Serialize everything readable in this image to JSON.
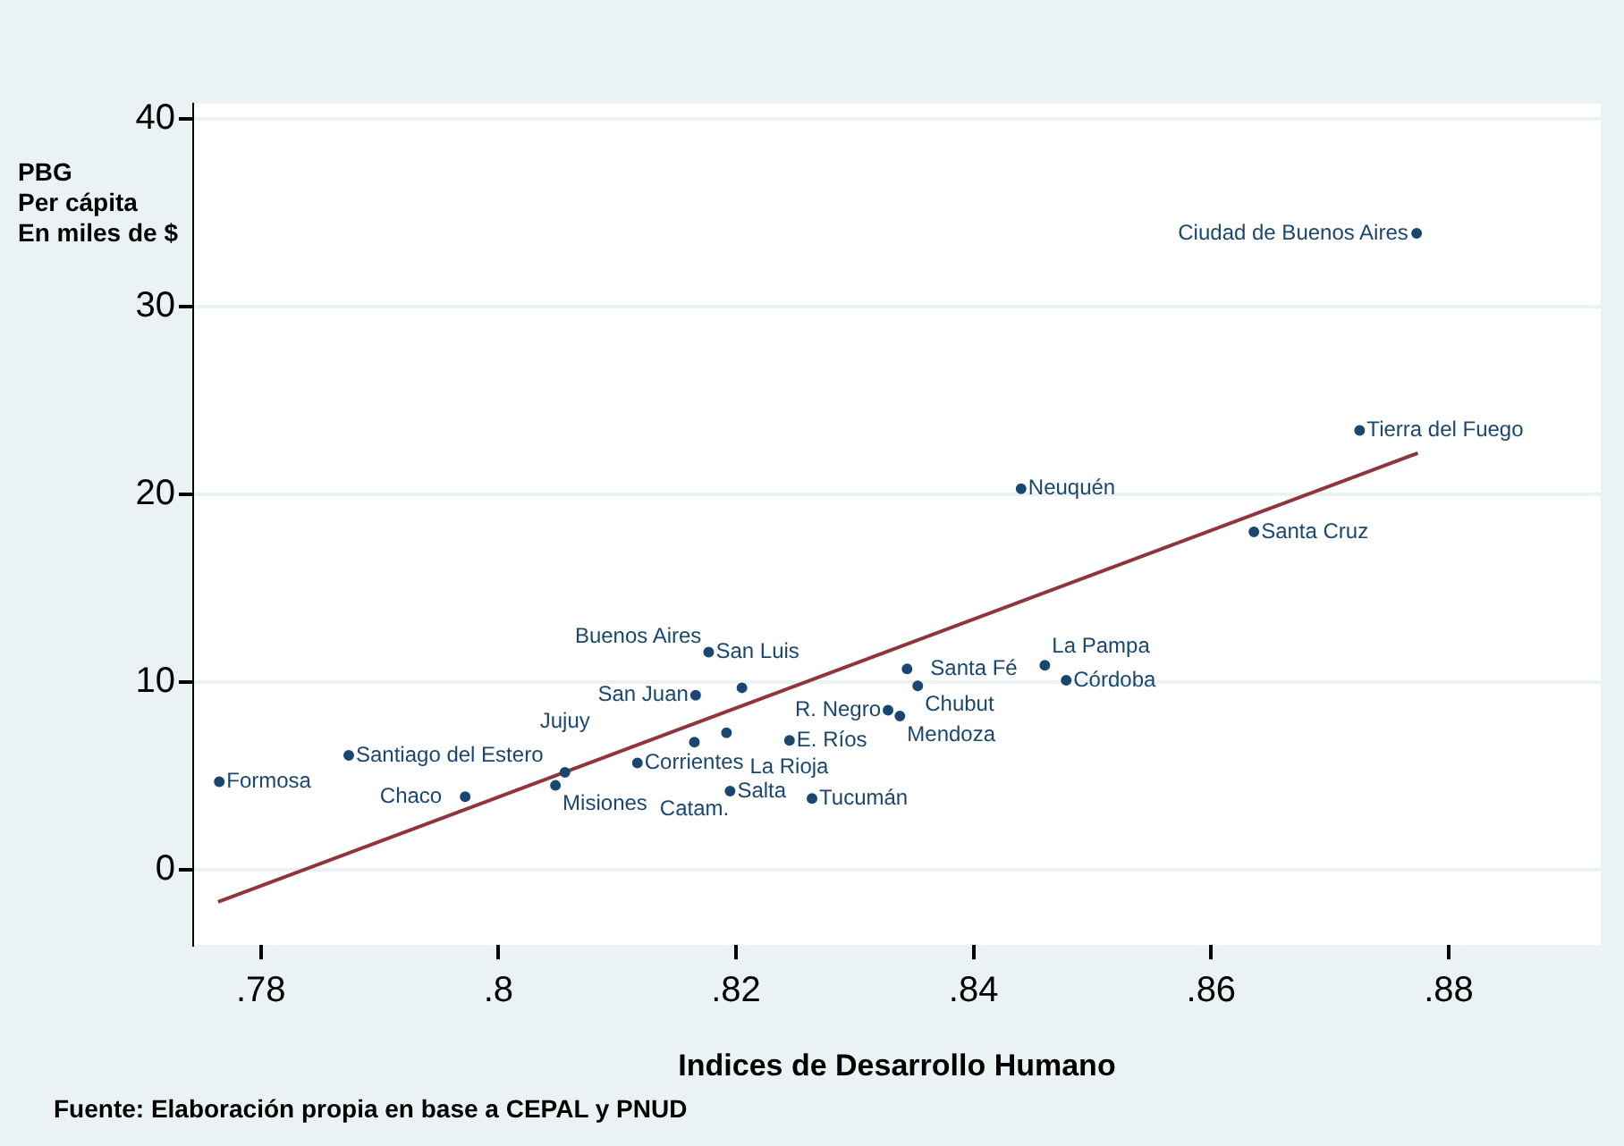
{
  "chart_data": {
    "type": "scatter",
    "xlabel": "Indices de Desarrollo Humano",
    "ylabel": "PBG\nPer cápita\nEn miles de $",
    "xlim": [
      0.7743,
      0.8928
    ],
    "ylim": [
      -4,
      40.8
    ],
    "xticks": [
      {
        "value": 0.78,
        "label": ".78"
      },
      {
        "value": 0.8,
        "label": ".8"
      },
      {
        "value": 0.82,
        "label": ".82"
      },
      {
        "value": 0.84,
        "label": ".84"
      },
      {
        "value": 0.86,
        "label": ".86"
      },
      {
        "value": 0.88,
        "label": ".88"
      }
    ],
    "yticks": [
      0,
      10,
      20,
      30,
      40
    ],
    "grid": "y",
    "legend": false,
    "marker": "circle",
    "series": [
      {
        "type": "scatter",
        "color": "#1a476f",
        "x": [
          0.7765,
          0.7874,
          0.7972,
          0.8048,
          0.8056,
          0.8117,
          0.8177,
          0.8205,
          0.8166,
          0.8192,
          0.8165,
          0.8245,
          0.8195,
          0.8264,
          0.8344,
          0.8353,
          0.8328,
          0.8338,
          0.846,
          0.8478,
          0.844,
          0.8636,
          0.8725,
          0.8773
        ],
        "values": [
          4.7,
          6.1,
          3.9,
          4.5,
          5.2,
          5.7,
          11.6,
          9.7,
          9.3,
          7.3,
          6.8,
          6.9,
          4.2,
          3.8,
          10.7,
          9.8,
          8.5,
          8.2,
          10.9,
          10.1,
          20.3,
          18,
          23.4,
          33.9
        ]
      },
      {
        "type": "line",
        "color": "#90353b",
        "marker": "none",
        "x": [
          0.7764,
          0.8774
        ],
        "values": [
          -1.7,
          22.2
        ]
      }
    ],
    "annotations": [
      {
        "text": "Formosa",
        "x": 0.7765,
        "y": 4.7
      },
      {
        "text": "Santiago del Estero",
        "x": 0.7874,
        "y": 6.1
      },
      {
        "text": "Chaco",
        "x": 0.7972,
        "y": 3.9
      },
      {
        "text": "Misiones",
        "x": 0.8048,
        "y": 4.5
      },
      {
        "text": "Jujuy",
        "x": 0.8056,
        "y": 5.2
      },
      {
        "text": "Corrientes",
        "x": 0.8117,
        "y": 5.7
      },
      {
        "text": "San Luis",
        "x": 0.8177,
        "y": 11.6
      },
      {
        "text": "Buenos Aires",
        "x": 0.8205,
        "y": 9.7
      },
      {
        "text": "San Juan",
        "x": 0.8166,
        "y": 9.3
      },
      {
        "text": "La Rioja",
        "x": 0.8192,
        "y": 7.3
      },
      {
        "text": "Catam.",
        "x": 0.8165,
        "y": 6.8
      },
      {
        "text": "E. Ríos",
        "x": 0.8245,
        "y": 6.9
      },
      {
        "text": "Salta",
        "x": 0.8195,
        "y": 4.2
      },
      {
        "text": "Tucumán",
        "x": 0.8264,
        "y": 3.8
      },
      {
        "text": "Santa Fé",
        "x": 0.8344,
        "y": 10.7
      },
      {
        "text": "Chubut",
        "x": 0.8353,
        "y": 9.8
      },
      {
        "text": "R. Negro",
        "x": 0.8328,
        "y": 8.5
      },
      {
        "text": "Mendoza",
        "x": 0.8338,
        "y": 8.2
      },
      {
        "text": "La Pampa",
        "x": 0.846,
        "y": 10.9
      },
      {
        "text": "Córdoba",
        "x": 0.8478,
        "y": 10.1
      },
      {
        "text": "Neuquén",
        "x": 0.844,
        "y": 20.3
      },
      {
        "text": "Santa Cruz",
        "x": 0.8636,
        "y": 18
      },
      {
        "text": "Tierra del Fuego",
        "x": 0.8725,
        "y": 23.4
      },
      {
        "text": "Ciudad de Buenos Aires",
        "x": 0.8773,
        "y": 33.9
      },
      "Fuente: Elaboración propia en base a CEPAL y PNUD"
    ]
  }
}
